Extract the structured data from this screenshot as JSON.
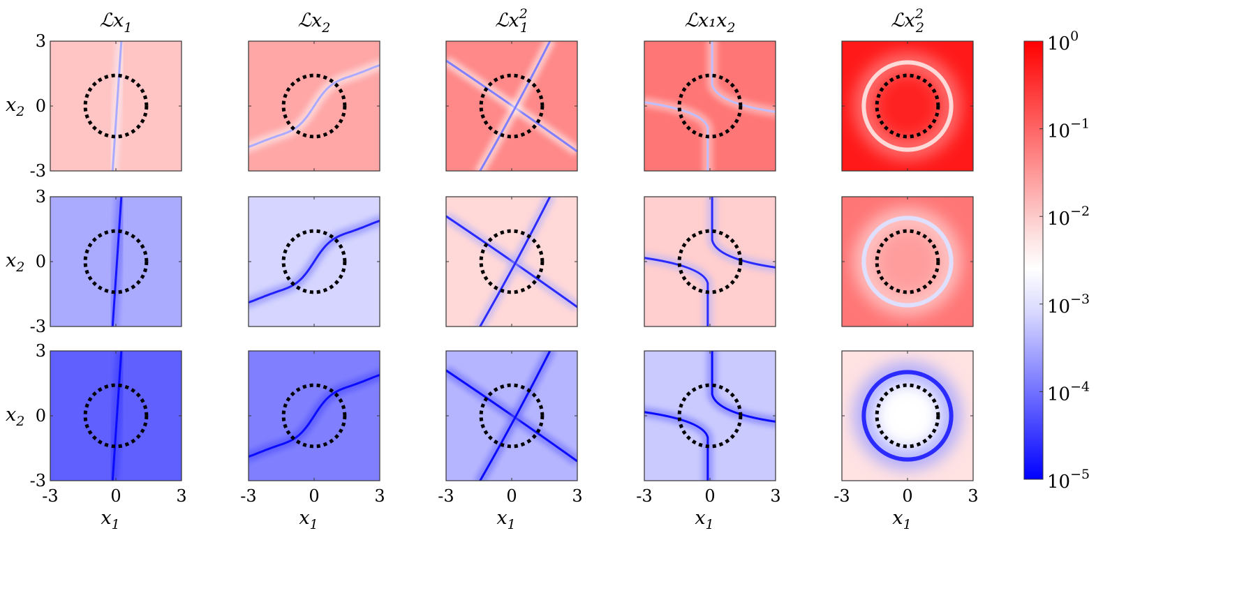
{
  "chart_data": {
    "type": "heatmap",
    "rows": 3,
    "columns": 5,
    "column_titles": [
      {
        "base": "ℒx",
        "sub": "1",
        "sup": ""
      },
      {
        "base": "ℒx",
        "sub": "2",
        "sup": ""
      },
      {
        "base": "ℒx",
        "sub": "1",
        "sup": "2"
      },
      {
        "base": "ℒx₁x",
        "sub": "2",
        "sup": ""
      },
      {
        "base": "ℒx",
        "sub": "2",
        "sup": "2"
      }
    ],
    "xlabel": {
      "base": "x",
      "sub": "1"
    },
    "ylabel": {
      "base": "x",
      "sub": "2"
    },
    "xlim": [
      -3,
      3
    ],
    "ylim": [
      -3,
      3
    ],
    "xticks": [
      "-3",
      "0",
      "3"
    ],
    "yticks": [
      "3",
      "0",
      "-3"
    ],
    "circle_radius": 2,
    "circle_style": "dotted black",
    "colorbar": {
      "scale": "log",
      "range": [
        1e-05,
        1
      ],
      "ticks": [
        {
          "base": "10",
          "exp": "0"
        },
        {
          "base": "10",
          "exp": "−1"
        },
        {
          "base": "10",
          "exp": "−2"
        },
        {
          "base": "10",
          "exp": "−3"
        },
        {
          "base": "10",
          "exp": "−4"
        },
        {
          "base": "10",
          "exp": "−5"
        }
      ],
      "colors": {
        "high": "#ff0000",
        "mid": "#ffffff",
        "low": "#0000ff"
      }
    },
    "panel_field_log10_level": [
      [
        {
          "background": -2.0,
          "feature": "vertical-line",
          "feature_level": -3.4
        },
        {
          "background": -1.7,
          "feature": "s-curve",
          "feature_level": -3.4
        },
        {
          "background": -1.4,
          "feature": "x-cross",
          "feature_level": -3.8
        },
        {
          "background": -1.2,
          "feature": "hyperbola",
          "feature_level": -3.2
        },
        {
          "background": -0.25,
          "feature": "ring",
          "feature_level": -2.2,
          "inside": -0.35
        }
      ],
      [
        {
          "background": -3.4,
          "feature": "vertical-line",
          "feature_level": -4.8
        },
        {
          "background": -3.0,
          "feature": "s-curve",
          "feature_level": -4.7
        },
        {
          "background": -2.2,
          "feature": "x-cross",
          "feature_level": -4.6
        },
        {
          "background": -2.1,
          "feature": "hyperbola",
          "feature_level": -4.6
        },
        {
          "background": -1.2,
          "feature": "ring",
          "feature_level": -2.9,
          "inside": -1.6
        }
      ],
      [
        {
          "background": -4.1,
          "feature": "vertical-line",
          "feature_level": -4.9
        },
        {
          "background": -3.8,
          "feature": "s-curve",
          "feature_level": -4.9
        },
        {
          "background": -3.3,
          "feature": "x-cross",
          "feature_level": -4.9
        },
        {
          "background": -3.1,
          "feature": "hyperbola",
          "feature_level": -4.9
        },
        {
          "background": -2.3,
          "feature": "ring",
          "feature_level": -4.6,
          "inside": -2.6
        }
      ]
    ]
  }
}
